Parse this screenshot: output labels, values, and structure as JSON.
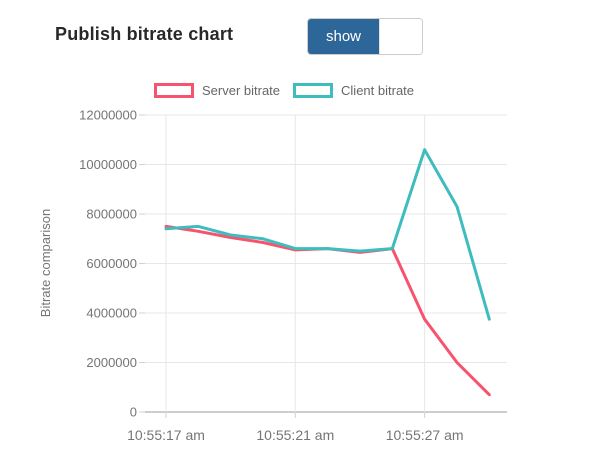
{
  "header": {
    "title": "Publish bitrate chart",
    "toggle": {
      "on_label": "show",
      "state": "on"
    }
  },
  "chart_data": {
    "type": "line",
    "title": "Publish bitrate chart",
    "ylabel": "Bitrate comparison",
    "xlabel": "",
    "ylim": [
      0,
      12000000
    ],
    "grid": true,
    "legend_position": "top",
    "y_ticks": [
      0,
      2000000,
      4000000,
      6000000,
      8000000,
      10000000,
      12000000
    ],
    "x_ticks": [
      {
        "index": 0,
        "label": "10:55:17 am"
      },
      {
        "index": 4,
        "label": "10:55:21 am"
      },
      {
        "index": 8,
        "label": "10:55:27 am"
      }
    ],
    "series": [
      {
        "name": "Server bitrate",
        "color": "#f8536e",
        "values": [
          7500000,
          7300000,
          7050000,
          6850000,
          6550000,
          6600000,
          6450000,
          6600000,
          3750000,
          2000000,
          700000
        ]
      },
      {
        "name": "Client bitrate",
        "color": "#3fbcbe",
        "values": [
          7400000,
          7500000,
          7150000,
          7000000,
          6600000,
          6600000,
          6500000,
          6600000,
          10600000,
          8300000,
          3750000
        ]
      }
    ],
    "colors": {
      "gridline": "#e7e7e7",
      "zero_line": "#9b9b9b",
      "tick_mark": "#d2d2d2",
      "tick_text": "#757575",
      "accent_blue": "#2d6698"
    }
  }
}
